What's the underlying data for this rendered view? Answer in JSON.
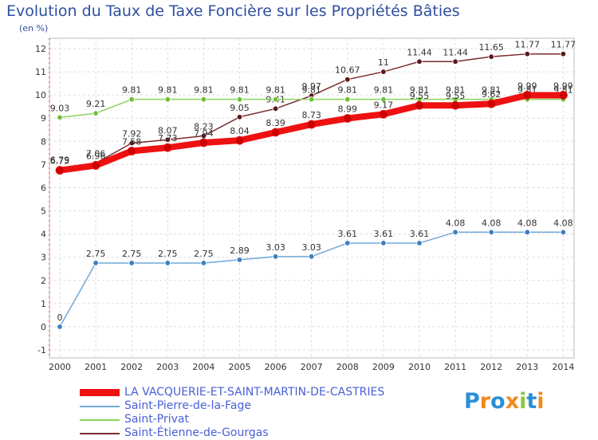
{
  "header": {
    "title": "Evolution du Taux de Taxe Foncière sur les Propriétés Bâties",
    "unit": "(en %)"
  },
  "logo": {
    "text": "Proxiti",
    "letters": [
      "P",
      "r",
      "o",
      "x",
      "i",
      "t",
      "i"
    ],
    "colors": [
      "#2b8fd6",
      "#f08a1c",
      "#2b8fd6",
      "#f08a1c",
      "#8cc63f",
      "#2b8fd6",
      "#f08a1c"
    ]
  },
  "chart_data": {
    "type": "line",
    "title": "Evolution du Taux de Taxe Foncière sur les Propriétés Bâties",
    "ylabel": "(en %)",
    "xlabel": "",
    "ylim": [
      -1,
      12
    ],
    "yticks": [
      "-1",
      "0",
      "1",
      "2",
      "3",
      "4",
      "5",
      "6",
      "7",
      "8",
      "9",
      "10",
      "11",
      "12"
    ],
    "categories": [
      "2000",
      "2001",
      "2002",
      "2003",
      "2004",
      "2005",
      "2006",
      "2007",
      "2008",
      "2009",
      "2010",
      "2011",
      "2012",
      "2013",
      "2014"
    ],
    "grid": true,
    "series": [
      {
        "name": "Saint-Étienne-de-Gourgas",
        "color": "#7b2a2a",
        "marker": "#5a1a1a",
        "values": [
          6.79,
          7.06,
          7.92,
          8.07,
          8.23,
          9.05,
          9.41,
          9.97,
          10.67,
          11,
          11.44,
          11.44,
          11.65,
          11.77,
          11.77
        ],
        "labels": [
          "6.79",
          "7.06",
          "7.92",
          "8.07",
          "8.23",
          "9.05",
          "9.41",
          "9.97",
          "10.67",
          "11",
          "11.44",
          "11.44",
          "11.65",
          "11.77",
          "11.77"
        ]
      },
      {
        "name": "Saint-Privat",
        "color": "#8dd35f",
        "marker": "#6cc13a",
        "values": [
          9.03,
          9.21,
          9.81,
          9.81,
          9.81,
          9.81,
          9.81,
          9.81,
          9.81,
          9.81,
          9.81,
          9.81,
          9.81,
          9.81,
          9.81
        ],
        "labels": [
          "9.03",
          "9.21",
          "9.81",
          "9.81",
          "9.81",
          "9.81",
          "9.81",
          "9.81",
          "9.81",
          "9.81",
          "9.81",
          "9.81",
          "9.81",
          "9.81",
          "9.81"
        ]
      },
      {
        "name": "Saint-Pierre-de-la-Fage",
        "color": "#6fa8d8",
        "marker": "#3d7fc0",
        "values": [
          0,
          2.75,
          2.75,
          2.75,
          2.75,
          2.89,
          3.03,
          3.03,
          3.61,
          3.61,
          3.61,
          4.08,
          4.08,
          4.08,
          4.08
        ],
        "labels": [
          "0",
          "2.75",
          "2.75",
          "2.75",
          "2.75",
          "2.89",
          "3.03",
          "3.03",
          "3.61",
          "3.61",
          "3.61",
          "4.08",
          "4.08",
          "4.08",
          "4.08"
        ]
      },
      {
        "name": "LA VACQUERIE-ET-SAINT-MARTIN-DE-CASTRIES",
        "color": "#ee1111",
        "marker": "#cc0000",
        "bold": true,
        "values": [
          6.75,
          6.96,
          7.58,
          7.73,
          7.94,
          8.04,
          8.39,
          8.73,
          8.99,
          9.17,
          9.55,
          9.55,
          9.62,
          9.99,
          9.99
        ],
        "labels": [
          "6.75",
          "6.96",
          "7.58",
          "7.73",
          "7.94",
          "8.04",
          "8.39",
          "8.73",
          "8.99",
          "9.17",
          "9.55",
          "9.55",
          "9.62",
          "9.99",
          "9.99"
        ]
      }
    ],
    "legend": [
      {
        "name": "LA VACQUERIE-ET-SAINT-MARTIN-DE-CASTRIES",
        "color": "#ee1111",
        "bold": true
      },
      {
        "name": "Saint-Pierre-de-la-Fage",
        "color": "#6fa8d8"
      },
      {
        "name": "Saint-Privat",
        "color": "#8dd35f"
      },
      {
        "name": "Saint-Étienne-de-Gourgas",
        "color": "#7b2a2a"
      }
    ]
  }
}
